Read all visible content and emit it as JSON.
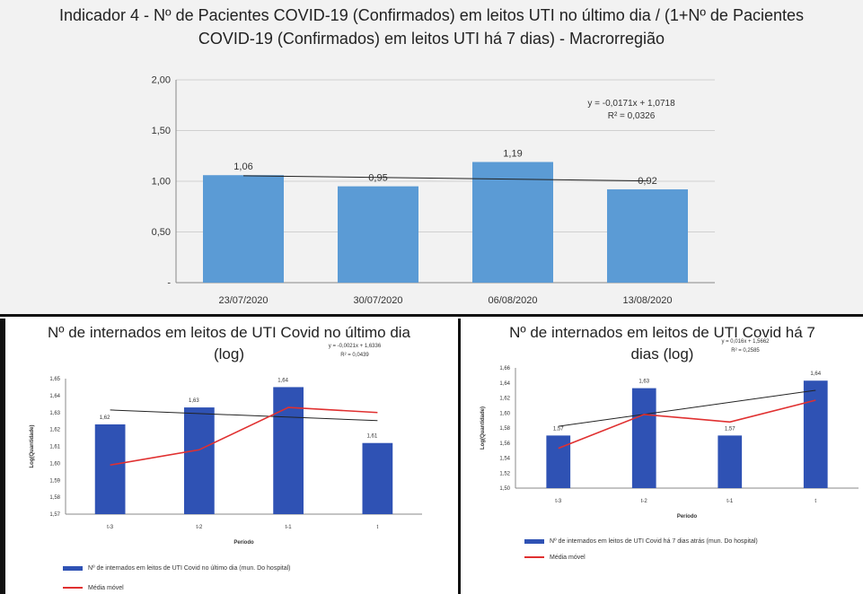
{
  "colors": {
    "bar_top": "#5b9bd5",
    "bar_small": "#2f52b4",
    "trend": "#222222",
    "moving_avg": "#e03030",
    "grid": "#d0d0d0"
  },
  "chart_data": [
    {
      "type": "bar",
      "title": "Indicador 4 - Nº de Pacientes COVID-19 (Confirmados) em leitos UTI no último dia / (1+Nº de Pacientes COVID-19 (Confirmados) em leitos UTI há 7 dias) - Macrorregião",
      "title_line1": "Indicador 4 - Nº de Pacientes COVID-19 (Confirmados) em leitos UTI no último dia / (1+Nº de Pacientes",
      "title_line2": "COVID-19 (Confirmados) em leitos UTI há 7 dias) - Macrorregião",
      "categories": [
        "23/07/2020",
        "30/07/2020",
        "06/08/2020",
        "13/08/2020"
      ],
      "values": [
        1.06,
        0.95,
        1.19,
        0.92
      ],
      "data_labels": [
        "1,06",
        "0,95",
        "1,19",
        "0,92"
      ],
      "ylim": [
        0,
        2
      ],
      "yticks": [
        0,
        0.5,
        1.0,
        1.5,
        2.0
      ],
      "ytick_labels": [
        "-",
        "0,50",
        "1,00",
        "1,50",
        "2,00"
      ],
      "trendline": {
        "slope": -0.0171,
        "intercept": 1.0718,
        "equation": "y = -0,0171x + 1,0718",
        "r2": "R² = 0,0326"
      },
      "grid": true
    },
    {
      "type": "bar",
      "title": "Nº de internados em leitos de UTI Covid no último dia (log)",
      "title_line1": "Nº de internados em leitos de UTI Covid no último dia",
      "title_line2": "(log)",
      "categories": [
        "t-3",
        "t-2",
        "t-1",
        "t"
      ],
      "values": [
        1.62,
        1.63,
        1.64,
        1.61
      ],
      "bar_values": [
        1.623,
        1.633,
        1.645,
        1.612
      ],
      "data_labels": [
        "1,62",
        "1,63",
        "1,64",
        "1,61"
      ],
      "moving_average": [
        1.599,
        1.608,
        1.633,
        1.63
      ],
      "ylim": [
        1.57,
        1.65
      ],
      "yticks": [
        1.57,
        1.58,
        1.59,
        1.6,
        1.61,
        1.62,
        1.63,
        1.64,
        1.65
      ],
      "ytick_labels": [
        "1,57",
        "1,58",
        "1,59",
        "1,60",
        "1,61",
        "1,62",
        "1,63",
        "1,64",
        "1,65"
      ],
      "xlabel": "Período",
      "ylabel": "Log(Quantidade)",
      "trendline": {
        "slope": -0.0021,
        "intercept": 1.6336,
        "equation": "y = -0,0021x + 1,6336",
        "r2": "R² = 0,0439"
      },
      "legend": {
        "bars": "Nº de internados em leitos de UTI Covid no último dia (mun. Do hospital)",
        "line": "Média móvel"
      }
    },
    {
      "type": "bar",
      "title": "Nº de internados em leitos de UTI Covid há 7 dias (log)",
      "title_line1": "Nº de internados em leitos de UTI Covid há 7",
      "title_line2": "dias (log)",
      "categories": [
        "t-3",
        "t-2",
        "t-1",
        "t"
      ],
      "values": [
        1.57,
        1.63,
        1.57,
        1.64
      ],
      "bar_values": [
        1.57,
        1.633,
        1.57,
        1.643
      ],
      "data_labels": [
        "1,57",
        "1,63",
        "1,57",
        "1,64"
      ],
      "moving_average": [
        1.553,
        1.598,
        1.588,
        1.617
      ],
      "ylim": [
        1.5,
        1.66
      ],
      "yticks": [
        1.5,
        1.52,
        1.54,
        1.56,
        1.58,
        1.6,
        1.62,
        1.64,
        1.66
      ],
      "ytick_labels": [
        "1,50",
        "1,52",
        "1,54",
        "1,56",
        "1,58",
        "1,60",
        "1,62",
        "1,64",
        "1,66"
      ],
      "xlabel": "Período",
      "ylabel": "Log(Quantidade)",
      "trendline": {
        "slope": 0.016,
        "intercept": 1.5662,
        "equation": "y = 0,016x + 1,5662",
        "r2": "R² = 0,2585"
      },
      "legend": {
        "bars": "Nº de internados em leitos de UTI Covid há 7 dias atrás (mun. Do hospital)",
        "line": "Média móvel"
      }
    }
  ]
}
